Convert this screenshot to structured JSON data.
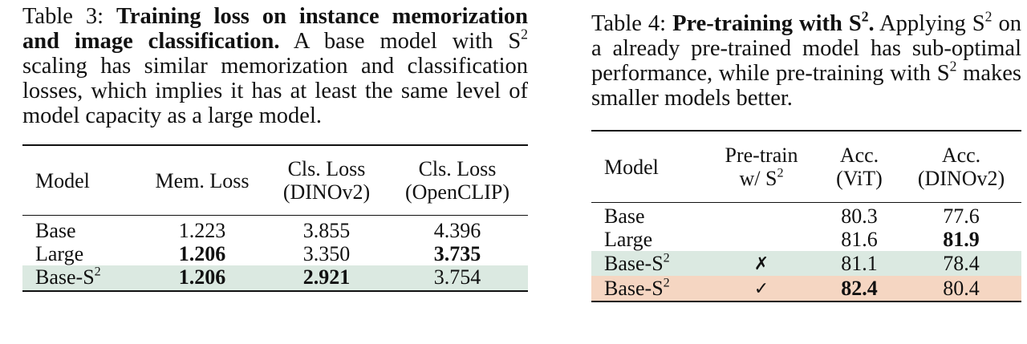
{
  "table3": {
    "caption_label": "Table 3: ",
    "caption_title": "Training loss on instance memorization and image classification.",
    "caption_body_pre": " A base model with S",
    "caption_body_post": " scaling has similar memorization and classification losses, which implies it has at least the same level of model capacity as a large model.",
    "headers": {
      "model": "Model",
      "mem": "Mem. Loss",
      "cls_dino_1": "Cls. Loss",
      "cls_dino_2": "(DINOv2)",
      "cls_clip_1": "Cls. Loss",
      "cls_clip_2": "(OpenCLIP)"
    },
    "rows": [
      {
        "model": "Base",
        "model_sup": "",
        "mem": "1.223",
        "dino": "3.855",
        "clip": "4.396",
        "bold": [
          "mem_no",
          "dino_no",
          "clip_no"
        ]
      },
      {
        "model": "Large",
        "model_sup": "",
        "mem": "1.206",
        "dino": "3.350",
        "clip": "3.735",
        "bold": [
          "mem",
          "clip"
        ]
      },
      {
        "model": "Base-S",
        "model_sup": "2",
        "mem": "1.206",
        "dino": "2.921",
        "clip": "3.754",
        "bold": [
          "mem",
          "dino"
        ],
        "highlight": "#dbe9e1"
      }
    ]
  },
  "table4": {
    "caption_label": "Table 4: ",
    "caption_title_pre": "Pre-training with S",
    "caption_title_post": ".",
    "caption_body_1": " Applying S",
    "caption_body_2": " on a already pre-trained model has sub-optimal performance, while pre-training with S",
    "caption_body_3": " makes smaller models better.",
    "headers": {
      "model": "Model",
      "pretrain_1": "Pre-train",
      "pretrain_2": "w/ S",
      "acc_vit_1": "Acc.",
      "acc_vit_2": "(ViT)",
      "acc_dino_1": "Acc.",
      "acc_dino_2": "(DINOv2)"
    },
    "rows": [
      {
        "model": "Base",
        "model_sup": "",
        "pretrain": "",
        "vit": "80.3",
        "dino": "77.6"
      },
      {
        "model": "Large",
        "model_sup": "",
        "pretrain": "",
        "vit": "81.6",
        "dino": "81.9",
        "bold": [
          "dino"
        ]
      },
      {
        "model": "Base-S",
        "model_sup": "2",
        "pretrain": "✗",
        "vit": "81.1",
        "dino": "78.4",
        "highlight": "#dbe9e1"
      },
      {
        "model": "Base-S",
        "model_sup": "2",
        "pretrain": "✓",
        "vit": "82.4",
        "dino": "80.4",
        "bold": [
          "vit"
        ],
        "highlight": "#f5d6c2"
      }
    ]
  },
  "sup_two": "2"
}
